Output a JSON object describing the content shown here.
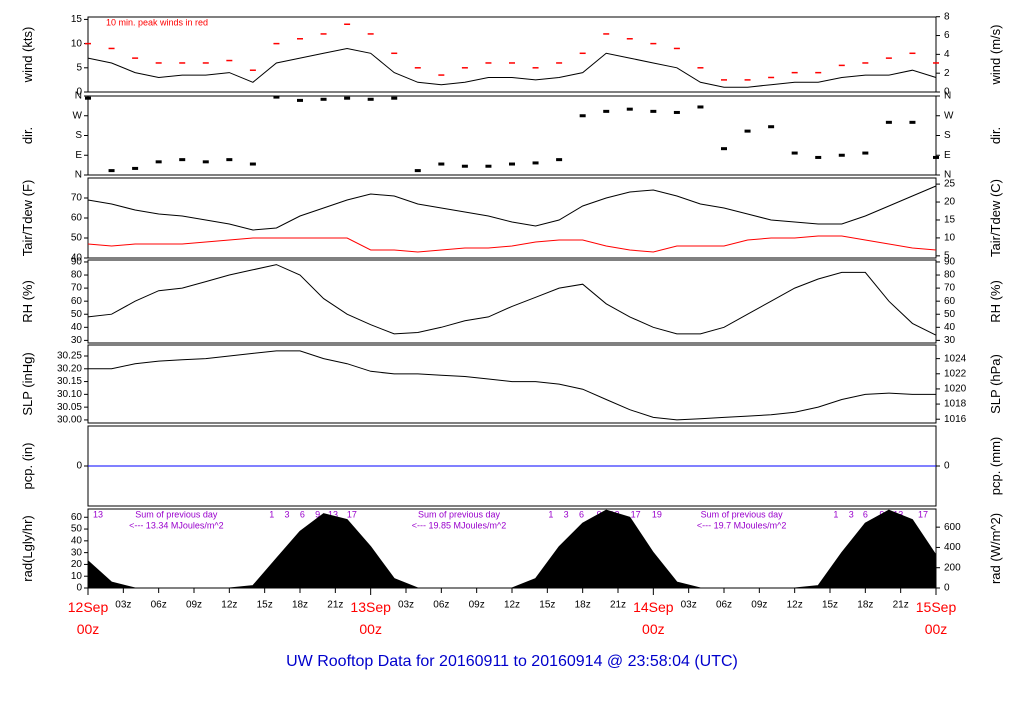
{
  "title": "UW Rooftop Data for 20160911  to  20160914 @ 23:58:04  (UTC)",
  "time_axis": {
    "x": [
      0,
      2,
      4,
      6,
      8,
      10,
      12,
      14,
      16,
      18,
      20,
      22,
      24,
      26,
      28,
      30,
      32,
      34,
      36,
      38,
      40,
      42,
      44,
      46,
      48,
      50,
      52,
      54,
      56,
      58,
      60,
      62,
      64,
      66,
      68,
      70,
      72
    ],
    "xlim": [
      0,
      72
    ],
    "xticks": [
      {
        "value": 3,
        "label": "03z"
      },
      {
        "value": 6,
        "label": "06z"
      },
      {
        "value": 9,
        "label": "09z"
      },
      {
        "value": 12,
        "label": "12z"
      },
      {
        "value": 15,
        "label": "15z"
      },
      {
        "value": 18,
        "label": "18z"
      },
      {
        "value": 21,
        "label": "21z"
      },
      {
        "value": 27,
        "label": "03z"
      },
      {
        "value": 30,
        "label": "06z"
      },
      {
        "value": 33,
        "label": "09z"
      },
      {
        "value": 36,
        "label": "12z"
      },
      {
        "value": 39,
        "label": "15z"
      },
      {
        "value": 42,
        "label": "18z"
      },
      {
        "value": 45,
        "label": "21z"
      },
      {
        "value": 51,
        "label": "03z"
      },
      {
        "value": 54,
        "label": "06z"
      },
      {
        "value": 57,
        "label": "09z"
      },
      {
        "value": 60,
        "label": "12z"
      },
      {
        "value": 63,
        "label": "15z"
      },
      {
        "value": 66,
        "label": "18z"
      },
      {
        "value": 69,
        "label": "21z"
      }
    ],
    "day_ticks": [
      {
        "value": 0,
        "label": "12Sep",
        "sublabel": "00z"
      },
      {
        "value": 24,
        "label": "13Sep",
        "sublabel": "00z"
      },
      {
        "value": 48,
        "label": "14Sep",
        "sublabel": "00z"
      },
      {
        "value": 72,
        "label": "15Sep",
        "sublabel": "00z"
      }
    ],
    "day_tick_color": "#ff0000"
  },
  "chart_data": [
    {
      "type": "line",
      "ylabel": "wind (kts)",
      "y2label": "wind (m/s)",
      "ylim": [
        0,
        15.5
      ],
      "yticks": [
        0,
        5,
        10,
        15
      ],
      "y2lim": [
        0,
        7.97
      ],
      "y2ticks": [
        0,
        2,
        4,
        6,
        8
      ],
      "annotation": "10 min. peak winds in red",
      "annotation_color": "#ff0000",
      "series": [
        {
          "name": "wind",
          "color": "#000000",
          "values": [
            7,
            6,
            4,
            3,
            3.5,
            3.5,
            4,
            2,
            6,
            7,
            8,
            9,
            8,
            4,
            2,
            1.5,
            2,
            3,
            3,
            2.5,
            3,
            4,
            8,
            7,
            6,
            5,
            2,
            1,
            1,
            1.5,
            2,
            2,
            3,
            3.5,
            3.5,
            4.5,
            3
          ]
        },
        {
          "name": "peak",
          "color": "#ff0000",
          "marker": "dash",
          "values": [
            10,
            9,
            7,
            6,
            6,
            6,
            6.5,
            4.5,
            10,
            11,
            12,
            14,
            12,
            8,
            5,
            3.5,
            5,
            6,
            6,
            5,
            6,
            8,
            12,
            11,
            10,
            9,
            5,
            2.5,
            2.5,
            3,
            4,
            4,
            5.5,
            6,
            7,
            8,
            6
          ]
        }
      ]
    },
    {
      "type": "scatter",
      "ylabel": "dir.",
      "y2label": "dir.",
      "ylim": [
        0,
        360
      ],
      "yticks": [
        {
          "value": 0,
          "label": "N"
        },
        {
          "value": 90,
          "label": "E"
        },
        {
          "value": 180,
          "label": "S"
        },
        {
          "value": 270,
          "label": "W"
        },
        {
          "value": 360,
          "label": "N"
        }
      ],
      "y2lim": [
        0,
        360
      ],
      "y2ticks": [
        {
          "value": 0,
          "label": "N"
        },
        {
          "value": 90,
          "label": "E"
        },
        {
          "value": 180,
          "label": "S"
        },
        {
          "value": 270,
          "label": "W"
        },
        {
          "value": 360,
          "label": "N"
        }
      ],
      "series": [
        {
          "name": "dir",
          "color": "#000000",
          "values": [
            350,
            20,
            30,
            60,
            70,
            60,
            70,
            50,
            355,
            340,
            345,
            350,
            345,
            350,
            20,
            50,
            40,
            40,
            50,
            55,
            70,
            270,
            290,
            300,
            290,
            285,
            310,
            120,
            200,
            220,
            100,
            80,
            90,
            100,
            240,
            240,
            80
          ]
        }
      ]
    },
    {
      "type": "line",
      "ylabel": "Tair/Tdew (F)",
      "y2label": "Tair/Tdew (C)",
      "ylim": [
        40,
        80
      ],
      "yticks": [
        40,
        50,
        60,
        70
      ],
      "y2lim": [
        4.4,
        26.7
      ],
      "y2ticks": [
        5,
        10,
        15,
        20,
        25
      ],
      "series": [
        {
          "name": "Tair",
          "color": "#000000",
          "values": [
            69,
            67,
            64,
            62,
            61,
            59,
            57,
            54,
            55,
            61,
            65,
            69,
            72,
            71,
            67,
            65,
            63,
            61,
            58,
            56,
            59,
            66,
            70,
            73,
            74,
            71,
            67,
            65,
            62,
            59,
            58,
            57,
            57,
            61,
            66,
            71,
            76
          ]
        },
        {
          "name": "Tdew",
          "color": "#ff0000",
          "values": [
            47,
            46,
            47,
            47,
            47,
            48,
            49,
            50,
            50,
            50,
            50,
            50,
            44,
            44,
            43,
            44,
            45,
            45,
            46,
            48,
            49,
            49,
            46,
            44,
            43,
            46,
            46,
            46,
            49,
            50,
            50,
            51,
            51,
            49,
            47,
            45,
            44
          ]
        }
      ]
    },
    {
      "type": "line",
      "ylabel": "RH (%)",
      "y2label": "RH (%)",
      "ylim": [
        28,
        91.5
      ],
      "yticks": [
        30,
        40,
        50,
        60,
        70,
        80,
        90
      ],
      "y2lim": [
        28,
        91.5
      ],
      "y2ticks": [
        30,
        40,
        50,
        60,
        70,
        80,
        90
      ],
      "series": [
        {
          "name": "RH",
          "color": "#000000",
          "values": [
            48,
            50,
            60,
            68,
            70,
            75,
            80,
            84,
            88,
            80,
            62,
            50,
            42,
            35,
            36,
            40,
            45,
            48,
            56,
            63,
            70,
            73,
            58,
            48,
            40,
            35,
            35,
            40,
            50,
            60,
            70,
            77,
            82,
            82,
            60,
            43,
            34
          ]
        }
      ]
    },
    {
      "type": "line",
      "ylabel": "SLP (inHg)",
      "y2label": "SLP (hPa)",
      "ylim": [
        29.988,
        30.293
      ],
      "yticks": [
        {
          "value": 30,
          "label": "30.00"
        },
        {
          "value": 30.05,
          "label": "30.05"
        },
        {
          "value": 30.1,
          "label": "30.10"
        },
        {
          "value": 30.15,
          "label": "30.15"
        },
        {
          "value": 30.2,
          "label": "30.20"
        },
        {
          "value": 30.25,
          "label": "30.25"
        }
      ],
      "y2lim": [
        1015.5,
        1025.8
      ],
      "y2ticks": [
        1016,
        1018,
        1020,
        1022,
        1024
      ],
      "series": [
        {
          "name": "SLP",
          "color": "#000000",
          "values": [
            30.2,
            30.2,
            30.22,
            30.23,
            30.235,
            30.24,
            30.25,
            30.26,
            30.27,
            30.27,
            30.24,
            30.22,
            30.19,
            30.18,
            30.18,
            30.175,
            30.17,
            30.16,
            30.15,
            30.15,
            30.14,
            30.12,
            30.08,
            30.04,
            30.01,
            30,
            30.005,
            30.01,
            30.015,
            30.02,
            30.03,
            30.05,
            30.08,
            30.1,
            30.105,
            30.1,
            30.1
          ]
        }
      ]
    },
    {
      "type": "line",
      "ylabel": "pcp. (in)",
      "y2label": "pcp. (mm)",
      "ylim": [
        -1,
        1
      ],
      "yticks": [
        0
      ],
      "y2lim": [
        -25.4,
        25.4
      ],
      "y2ticks": [
        0
      ],
      "series": [
        {
          "name": "pcp",
          "color": "#0000ff",
          "values": [
            0,
            0,
            0,
            0,
            0,
            0,
            0,
            0,
            0,
            0,
            0,
            0,
            0,
            0,
            0,
            0,
            0,
            0,
            0,
            0,
            0,
            0,
            0,
            0,
            0,
            0,
            0,
            0,
            0,
            0,
            0,
            0,
            0,
            0,
            0,
            0,
            0
          ]
        }
      ]
    },
    {
      "type": "area",
      "ylabel": "rad(Lgly/hr)",
      "y2label": "rad (W/m^2)",
      "ylim": [
        0,
        67
      ],
      "yticks": [
        0,
        10,
        20,
        30,
        40,
        50,
        60
      ],
      "y2lim": [
        0,
        779
      ],
      "y2ticks": [
        0,
        200,
        400,
        600
      ],
      "annotation_color": "#9900cc",
      "sun_marks": [
        {
          "x": 0.85,
          "label": "13"
        },
        {
          "x": 15.6,
          "label": "1"
        },
        {
          "x": 16.9,
          "label": "3"
        },
        {
          "x": 18.2,
          "label": "6"
        },
        {
          "x": 19.5,
          "label": "9"
        },
        {
          "x": 20.8,
          "label": "13"
        },
        {
          "x": 22.4,
          "label": "17"
        },
        {
          "x": 39.3,
          "label": "1"
        },
        {
          "x": 40.6,
          "label": "3"
        },
        {
          "x": 41.9,
          "label": "6"
        },
        {
          "x": 43.4,
          "label": "9"
        },
        {
          "x": 44.7,
          "label": "12"
        },
        {
          "x": 46.5,
          "label": "17"
        },
        {
          "x": 48.3,
          "label": "19"
        },
        {
          "x": 63.5,
          "label": "1"
        },
        {
          "x": 64.8,
          "label": "3"
        },
        {
          "x": 66,
          "label": "6"
        },
        {
          "x": 67.4,
          "label": "9"
        },
        {
          "x": 68.8,
          "label": "13"
        },
        {
          "x": 70.9,
          "label": "17"
        }
      ],
      "daily_sums": [
        {
          "x": 7.5,
          "label": "Sum of previous day",
          "amount": "<--- 13.34 MJoules/m^2"
        },
        {
          "x": 31.5,
          "label": "Sum of previous day",
          "amount": "<--- 19.85 MJoules/m^2"
        },
        {
          "x": 55.5,
          "label": "Sum of previous day",
          "amount": "<--- 19.7 MJoules/m^2"
        }
      ],
      "series": [
        {
          "name": "rad",
          "color": "#000000",
          "values": [
            23,
            5,
            0,
            0,
            0,
            0,
            0,
            2,
            25,
            48,
            63,
            58,
            35,
            8,
            0,
            0,
            0,
            0,
            0,
            8,
            35,
            55,
            66,
            60,
            30,
            5,
            0,
            0,
            0,
            0,
            0,
            2,
            30,
            55,
            66,
            58,
            28
          ]
        }
      ]
    }
  ]
}
